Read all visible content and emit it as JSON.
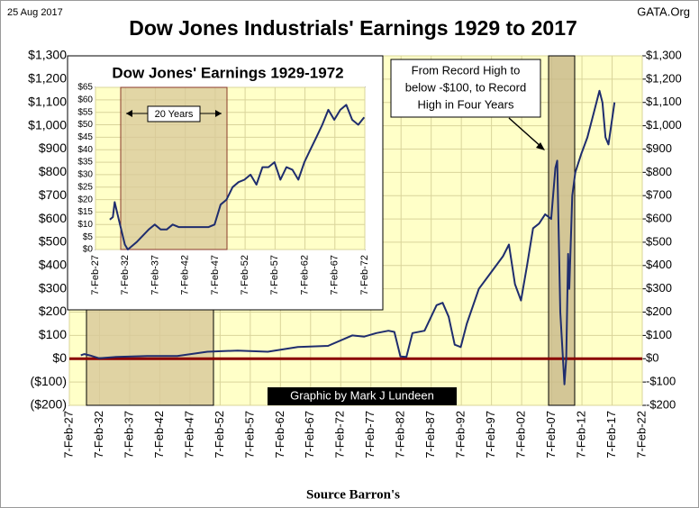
{
  "chart_data": [
    {
      "type": "line",
      "title": "Dow Jones Industrials' Earnings 1929 to 2017",
      "date_label": "25 Aug 2017",
      "site": "GATA.Org",
      "source": "Source Barron's",
      "credit": "Graphic by Mark J Lundeen",
      "annotation": [
        "From  Record High to",
        "below -$100, to Record",
        "High in Four Years"
      ],
      "grid": true,
      "xlim": [
        1927.1,
        2022.1
      ],
      "xticks": [
        {
          "value": 1927.1,
          "label": "7-Feb-27"
        },
        {
          "value": 1932.1,
          "label": "7-Feb-32"
        },
        {
          "value": 1937.1,
          "label": "7-Feb-37"
        },
        {
          "value": 1942.1,
          "label": "7-Feb-42"
        },
        {
          "value": 1947.1,
          "label": "7-Feb-47"
        },
        {
          "value": 1952.1,
          "label": "7-Feb-52"
        },
        {
          "value": 1957.1,
          "label": "7-Feb-57"
        },
        {
          "value": 1962.1,
          "label": "7-Feb-62"
        },
        {
          "value": 1967.1,
          "label": "7-Feb-67"
        },
        {
          "value": 1972.1,
          "label": "7-Feb-72"
        },
        {
          "value": 1977.1,
          "label": "7-Feb-77"
        },
        {
          "value": 1982.1,
          "label": "7-Feb-82"
        },
        {
          "value": 1987.1,
          "label": "7-Feb-87"
        },
        {
          "value": 1992.1,
          "label": "7-Feb-92"
        },
        {
          "value": 1997.1,
          "label": "7-Feb-97"
        },
        {
          "value": 2002.1,
          "label": "7-Feb-02"
        },
        {
          "value": 2007.1,
          "label": "7-Feb-07"
        },
        {
          "value": 2012.1,
          "label": "7-Feb-12"
        },
        {
          "value": 2017.1,
          "label": "7-Feb-17"
        },
        {
          "value": 2022.1,
          "label": "7-Feb-22"
        }
      ],
      "ylim": [
        -200,
        1300
      ],
      "yticks": [
        {
          "value": 1300,
          "label": "$1,300"
        },
        {
          "value": 1200,
          "label": "$1,200"
        },
        {
          "value": 1100,
          "label": "$1,100"
        },
        {
          "value": 1000,
          "label": "$1,000"
        },
        {
          "value": 900,
          "label": "$900"
        },
        {
          "value": 800,
          "label": "$800"
        },
        {
          "value": 700,
          "label": "$700"
        },
        {
          "value": 600,
          "label": "$600"
        },
        {
          "value": 500,
          "label": "$500"
        },
        {
          "value": 400,
          "label": "$400"
        },
        {
          "value": 300,
          "label": "$300"
        },
        {
          "value": 200,
          "label": "$200"
        },
        {
          "value": 100,
          "label": "$100"
        },
        {
          "value": 0,
          "label": "$0"
        },
        {
          "value": -100,
          "label": "($100)"
        },
        {
          "value": -200,
          "label": "($200)"
        }
      ],
      "y2lim": [
        -200,
        1300
      ],
      "y2ticks": [
        {
          "value": 1300,
          "label": "$1,300"
        },
        {
          "value": 1200,
          "label": "$1,200"
        },
        {
          "value": 1100,
          "label": "$1,100"
        },
        {
          "value": 1000,
          "label": "$1,000"
        },
        {
          "value": 900,
          "label": "$900"
        },
        {
          "value": 800,
          "label": "$800"
        },
        {
          "value": 700,
          "label": "$700"
        },
        {
          "value": 600,
          "label": "$600"
        },
        {
          "value": 500,
          "label": "$500"
        },
        {
          "value": 400,
          "label": "$400"
        },
        {
          "value": 300,
          "label": "$300"
        },
        {
          "value": 200,
          "label": "$200"
        },
        {
          "value": 100,
          "label": "$100"
        },
        {
          "value": 0,
          "label": "$0"
        },
        {
          "value": -100,
          "label": "-$100"
        },
        {
          "value": -200,
          "label": "-$200"
        }
      ],
      "series": [
        {
          "name": "Earnings",
          "color": "#1f2d6e",
          "x": [
            1929,
            1929.6,
            1930.5,
            1932,
            1935,
            1940,
            1945,
            1950,
            1955,
            1960,
            1965,
            1970,
            1974,
            1976,
            1978,
            1980,
            1981,
            1982,
            1983,
            1984,
            1986,
            1988,
            1989,
            1990,
            1991,
            1992,
            1993,
            1995,
            1997,
            1999,
            2000,
            2001,
            2002,
            2003,
            2004,
            2005,
            2006,
            2007,
            2007.7,
            2008,
            2008.5,
            2009.2,
            2009.5,
            2009.8,
            2010,
            2010.5,
            2011,
            2012,
            2013,
            2014,
            2015,
            2015.5,
            2016,
            2016.5,
            2017.5
          ],
          "values": [
            15,
            20,
            14,
            2,
            8,
            12,
            12,
            30,
            35,
            30,
            50,
            55,
            100,
            95,
            110,
            120,
            115,
            10,
            8,
            110,
            120,
            230,
            240,
            180,
            60,
            50,
            150,
            300,
            370,
            440,
            490,
            320,
            250,
            400,
            560,
            580,
            620,
            600,
            820,
            850,
            200,
            -110,
            0,
            450,
            300,
            700,
            800,
            880,
            950,
            1050,
            1150,
            1100,
            950,
            920,
            1100
          ]
        }
      ]
    },
    {
      "type": "line",
      "title": "Dow Jones' Earnings 1929-1972",
      "annotation": "20 Years",
      "grid": true,
      "xlim": [
        1927.1,
        1972.1
      ],
      "xticks": [
        {
          "value": 1927.1,
          "label": "7-Feb-27"
        },
        {
          "value": 1932.1,
          "label": "7-Feb-32"
        },
        {
          "value": 1937.1,
          "label": "7-Feb-37"
        },
        {
          "value": 1942.1,
          "label": "7-Feb-42"
        },
        {
          "value": 1947.1,
          "label": "7-Feb-47"
        },
        {
          "value": 1952.1,
          "label": "7-Feb-52"
        },
        {
          "value": 1957.1,
          "label": "7-Feb-57"
        },
        {
          "value": 1962.1,
          "label": "7-Feb-62"
        },
        {
          "value": 1967.1,
          "label": "7-Feb-67"
        },
        {
          "value": 1972.1,
          "label": "7-Feb-72"
        }
      ],
      "ylim": [
        0,
        65
      ],
      "yticks": [
        {
          "value": 65,
          "label": "$65"
        },
        {
          "value": 60,
          "label": "$60"
        },
        {
          "value": 55,
          "label": "$55"
        },
        {
          "value": 50,
          "label": "$50"
        },
        {
          "value": 45,
          "label": "$45"
        },
        {
          "value": 40,
          "label": "$40"
        },
        {
          "value": 35,
          "label": "$35"
        },
        {
          "value": 30,
          "label": "$30"
        },
        {
          "value": 25,
          "label": "$25"
        },
        {
          "value": 20,
          "label": "$20"
        },
        {
          "value": 15,
          "label": "$15"
        },
        {
          "value": 10,
          "label": "$10"
        },
        {
          "value": 5,
          "label": "$5"
        },
        {
          "value": 0,
          "label": "$0"
        }
      ],
      "series": [
        {
          "name": "Earnings",
          "color": "#1f2d6e",
          "x": [
            1929.5,
            1930,
            1930.3,
            1931,
            1932,
            1932.5,
            1933,
            1934,
            1936,
            1937,
            1938,
            1939,
            1940,
            1941,
            1942,
            1944,
            1946,
            1947,
            1948,
            1949,
            1950,
            1951,
            1952,
            1953,
            1954,
            1955,
            1956,
            1957,
            1958,
            1959,
            1960,
            1961,
            1962,
            1963,
            1964,
            1965,
            1966,
            1967,
            1968,
            1969,
            1970,
            1971,
            1972
          ],
          "values": [
            12,
            13,
            19,
            12,
            2,
            0,
            1,
            3,
            8,
            10,
            8,
            8,
            10,
            9,
            9,
            9,
            9,
            10,
            18,
            20,
            25,
            27,
            28,
            30,
            26,
            33,
            33,
            35,
            28,
            33,
            32,
            28,
            35,
            40,
            45,
            50,
            56,
            52,
            56,
            58,
            52,
            50,
            53
          ]
        }
      ]
    }
  ]
}
